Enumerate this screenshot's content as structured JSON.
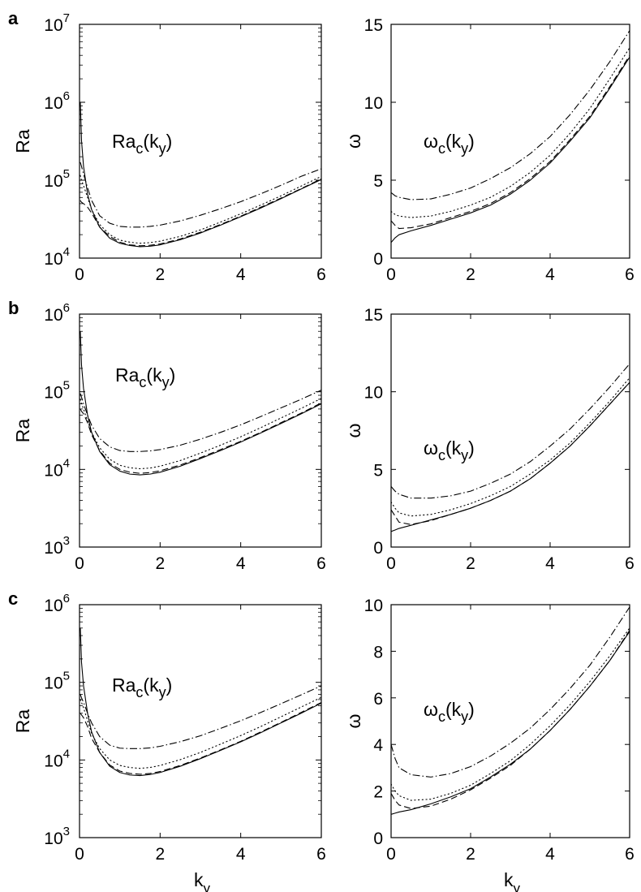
{
  "chart_data": [
    {
      "id": "a-ra",
      "panel_label": "a",
      "type": "line",
      "yscale": "log",
      "xlim": [
        0,
        6
      ],
      "ylim": [
        10000,
        10000000
      ],
      "ylabel": "Ra",
      "xlabel": "",
      "annotation": {
        "main": "Ra",
        "sub1": "c",
        "paren_open": "(",
        "var": "k",
        "sub2": "y",
        "paren_close": ")"
      },
      "xticks": [
        "0",
        "2",
        "4",
        "6"
      ],
      "yticks": [
        {
          "base": "10",
          "exp": "4"
        },
        {
          "base": "10",
          "exp": "5"
        },
        {
          "base": "10",
          "exp": "6"
        },
        {
          "base": "10",
          "exp": "7"
        }
      ],
      "x": [
        0.02,
        0.05,
        0.1,
        0.2,
        0.3,
        0.5,
        0.75,
        1.0,
        1.25,
        1.5,
        1.75,
        2.0,
        2.5,
        3.0,
        3.5,
        4.0,
        4.5,
        5.0,
        5.5,
        6.0
      ],
      "series": [
        {
          "style": "solid",
          "values": [
            1000000,
            320000,
            150000,
            66000,
            42000,
            25000,
            18000,
            15500,
            14500,
            14000,
            14200,
            14800,
            17200,
            21000,
            26500,
            34000,
            44000,
            58000,
            77000,
            102000
          ]
        },
        {
          "style": "dashed",
          "values": [
            55000,
            52000,
            50000,
            45000,
            38000,
            25000,
            19000,
            16000,
            14800,
            14400,
            14600,
            15200,
            17600,
            21500,
            27000,
            34500,
            45000,
            59000,
            78000,
            104000
          ]
        },
        {
          "style": "dotted",
          "values": [
            115000,
            100000,
            85000,
            60000,
            42000,
            27000,
            20000,
            17000,
            16000,
            15500,
            15800,
            16500,
            19000,
            23000,
            29000,
            37000,
            48000,
            63000,
            84000,
            112000
          ]
        },
        {
          "style": "dashdot",
          "values": [
            170000,
            150000,
            120000,
            80000,
            55000,
            35000,
            28000,
            25500,
            25000,
            25000,
            25500,
            26500,
            30000,
            35500,
            43000,
            53000,
            67000,
            86000,
            112000,
            140000
          ]
        }
      ]
    },
    {
      "id": "a-omega",
      "panel_label": "",
      "type": "line",
      "yscale": "linear",
      "xlim": [
        0,
        6
      ],
      "ylim": [
        0,
        15
      ],
      "ylabel": "ω",
      "xlabel": "",
      "annotation": {
        "main": "ω",
        "sub1": "c",
        "paren_open": "(",
        "var": "k",
        "sub2": "y",
        "paren_close": ")"
      },
      "xticks": [
        "0",
        "2",
        "4",
        "6"
      ],
      "yticks": [
        "0",
        "5",
        "10",
        "15"
      ],
      "x": [
        0,
        0.1,
        0.2,
        0.5,
        1,
        1.5,
        2,
        2.5,
        3,
        3.5,
        4,
        4.5,
        5,
        5.5,
        6
      ],
      "series": [
        {
          "style": "solid",
          "values": [
            1.0,
            1.3,
            1.5,
            1.75,
            2.1,
            2.5,
            2.9,
            3.4,
            4.1,
            5.0,
            6.1,
            7.5,
            9.0,
            10.9,
            12.9
          ]
        },
        {
          "style": "dashed",
          "values": [
            2.4,
            2.1,
            1.9,
            1.95,
            2.2,
            2.6,
            3.0,
            3.5,
            4.2,
            5.1,
            6.2,
            7.6,
            9.1,
            11.0,
            13.0
          ]
        },
        {
          "style": "dotted",
          "values": [
            3.0,
            2.8,
            2.7,
            2.6,
            2.7,
            3.0,
            3.4,
            3.9,
            4.6,
            5.5,
            6.6,
            8.0,
            9.6,
            11.5,
            13.5
          ]
        },
        {
          "style": "dashdot",
          "values": [
            4.2,
            4.0,
            3.9,
            3.75,
            3.8,
            4.1,
            4.5,
            5.1,
            5.8,
            6.7,
            7.8,
            9.2,
            10.8,
            12.6,
            14.6
          ]
        }
      ]
    },
    {
      "id": "b-ra",
      "panel_label": "b",
      "type": "line",
      "yscale": "log",
      "xlim": [
        0,
        6
      ],
      "ylim": [
        1000,
        1000000
      ],
      "ylabel": "Ra",
      "xlabel": "",
      "annotation": {
        "main": "Ra",
        "sub1": "c",
        "paren_open": "(",
        "var": "k",
        "sub2": "y",
        "paren_close": ")"
      },
      "xticks": [
        "0",
        "2",
        "4",
        "6"
      ],
      "yticks": [
        {
          "base": "10",
          "exp": "3"
        },
        {
          "base": "10",
          "exp": "4"
        },
        {
          "base": "10",
          "exp": "5"
        },
        {
          "base": "10",
          "exp": "6"
        }
      ],
      "x": [
        0.02,
        0.05,
        0.1,
        0.2,
        0.3,
        0.5,
        0.75,
        1.0,
        1.25,
        1.5,
        1.75,
        2.0,
        2.5,
        3.0,
        3.5,
        4.0,
        4.5,
        5.0,
        5.5,
        6.0
      ],
      "series": [
        {
          "style": "solid",
          "values": [
            600000,
            220000,
            110000,
            50000,
            30000,
            17000,
            11500,
            9500,
            8700,
            8500,
            8700,
            9200,
            11000,
            13800,
            17500,
            22500,
            29500,
            39000,
            52000,
            70000
          ]
        },
        {
          "style": "dashed",
          "values": [
            60000,
            56000,
            52000,
            40000,
            28000,
            17500,
            12000,
            10000,
            9200,
            8900,
            9100,
            9600,
            11400,
            14200,
            18000,
            23000,
            30000,
            40000,
            53000,
            72000
          ]
        },
        {
          "style": "dotted",
          "values": [
            80000,
            70000,
            60000,
            42000,
            30000,
            19000,
            13500,
            11300,
            10500,
            10200,
            10400,
            11000,
            13000,
            16200,
            20500,
            26300,
            34500,
            46000,
            61000,
            82000
          ]
        },
        {
          "style": "dashdot",
          "values": [
            95000,
            85000,
            70000,
            50000,
            37000,
            25000,
            19500,
            17500,
            17000,
            17000,
            17300,
            18000,
            20500,
            24500,
            30000,
            37500,
            48000,
            62000,
            80000,
            105000
          ]
        }
      ]
    },
    {
      "id": "b-omega",
      "panel_label": "",
      "type": "line",
      "yscale": "linear",
      "xlim": [
        0,
        6
      ],
      "ylim": [
        0,
        15
      ],
      "ylabel": "ω",
      "xlabel": "",
      "annotation": {
        "main": "ω",
        "sub1": "c",
        "paren_open": "(",
        "var": "k",
        "sub2": "y",
        "paren_close": ")"
      },
      "xticks": [
        "0",
        "2",
        "4",
        "6"
      ],
      "yticks": [
        "0",
        "5",
        "10",
        "15"
      ],
      "x": [
        0,
        0.1,
        0.2,
        0.5,
        1,
        1.5,
        2,
        2.5,
        3,
        3.5,
        4,
        4.5,
        5,
        5.5,
        6
      ],
      "series": [
        {
          "style": "solid",
          "values": [
            1.0,
            1.1,
            1.2,
            1.4,
            1.75,
            2.1,
            2.5,
            3.0,
            3.6,
            4.4,
            5.4,
            6.5,
            7.8,
            9.2,
            10.6
          ]
        },
        {
          "style": "dashed",
          "values": [
            2.4,
            2.0,
            1.6,
            1.45,
            1.7,
            2.1,
            2.5,
            3.0,
            3.6,
            4.4,
            5.4,
            6.5,
            7.8,
            9.2,
            10.6
          ]
        },
        {
          "style": "dotted",
          "values": [
            2.9,
            2.5,
            2.2,
            2.0,
            2.1,
            2.4,
            2.8,
            3.3,
            3.9,
            4.7,
            5.6,
            6.7,
            8.0,
            9.4,
            10.9
          ]
        },
        {
          "style": "dashdot",
          "values": [
            3.9,
            3.6,
            3.4,
            3.15,
            3.15,
            3.3,
            3.6,
            4.1,
            4.7,
            5.5,
            6.5,
            7.6,
            8.9,
            10.3,
            11.8
          ]
        }
      ]
    },
    {
      "id": "c-ra",
      "panel_label": "c",
      "type": "line",
      "yscale": "log",
      "xlim": [
        0,
        6
      ],
      "ylim": [
        1000,
        1000000
      ],
      "ylabel": "Ra",
      "xlabel": "k_y",
      "xlabel_main": "k",
      "xlabel_sub": "y",
      "annotation": {
        "main": "Ra",
        "sub1": "c",
        "paren_open": "(",
        "var": "k",
        "sub2": "y",
        "paren_close": ")"
      },
      "xticks": [
        "0",
        "2",
        "4",
        "6"
      ],
      "yticks": [
        {
          "base": "10",
          "exp": "3"
        },
        {
          "base": "10",
          "exp": "4"
        },
        {
          "base": "10",
          "exp": "5"
        },
        {
          "base": "10",
          "exp": "6"
        }
      ],
      "x": [
        0.02,
        0.05,
        0.1,
        0.2,
        0.3,
        0.5,
        0.75,
        1.0,
        1.25,
        1.5,
        1.75,
        2.0,
        2.5,
        3.0,
        3.5,
        4.0,
        4.5,
        5.0,
        5.5,
        6.0
      ],
      "series": [
        {
          "style": "solid",
          "values": [
            500000,
            180000,
            90000,
            40000,
            23000,
            12500,
            8300,
            6900,
            6400,
            6300,
            6500,
            6900,
            8300,
            10400,
            13300,
            17100,
            22500,
            30000,
            40000,
            54000
          ]
        },
        {
          "style": "dashed",
          "values": [
            40000,
            38000,
            35000,
            27000,
            19000,
            12500,
            8600,
            7200,
            6700,
            6550,
            6700,
            7100,
            8500,
            10600,
            13500,
            17400,
            23000,
            30500,
            41000,
            55000
          ]
        },
        {
          "style": "dotted",
          "values": [
            60000,
            55000,
            47000,
            32000,
            22000,
            14000,
            10000,
            8500,
            8000,
            7800,
            8000,
            8500,
            10100,
            12500,
            16000,
            20600,
            27000,
            36000,
            48000,
            64000
          ]
        },
        {
          "style": "dashdot",
          "values": [
            70000,
            63000,
            55000,
            40000,
            30000,
            20000,
            15500,
            14200,
            14000,
            14000,
            14300,
            15000,
            17200,
            20500,
            25500,
            32000,
            41000,
            53000,
            69000,
            90000
          ]
        }
      ]
    },
    {
      "id": "c-omega",
      "panel_label": "",
      "type": "line",
      "yscale": "linear",
      "xlim": [
        0,
        6
      ],
      "ylim": [
        0,
        10
      ],
      "ylabel": "ω",
      "xlabel": "k_y",
      "xlabel_main": "k",
      "xlabel_sub": "y",
      "annotation": {
        "main": "ω",
        "sub1": "c",
        "paren_open": "(",
        "var": "k",
        "sub2": "y",
        "paren_close": ")"
      },
      "xticks": [
        "0",
        "2",
        "4",
        "6"
      ],
      "yticks": [
        "0",
        "2",
        "4",
        "6",
        "8",
        "10"
      ],
      "x": [
        0,
        0.1,
        0.2,
        0.5,
        1,
        1.5,
        2,
        2.5,
        3,
        3.5,
        4,
        4.5,
        5,
        5.5,
        6
      ],
      "series": [
        {
          "style": "solid",
          "values": [
            1.0,
            1.05,
            1.1,
            1.2,
            1.45,
            1.75,
            2.1,
            2.6,
            3.15,
            3.8,
            4.6,
            5.5,
            6.5,
            7.6,
            8.85
          ]
        },
        {
          "style": "dashed",
          "values": [
            1.9,
            1.6,
            1.4,
            1.25,
            1.35,
            1.65,
            2.05,
            2.55,
            3.1,
            3.8,
            4.6,
            5.5,
            6.5,
            7.6,
            8.9
          ]
        },
        {
          "style": "dotted",
          "values": [
            2.3,
            2.0,
            1.8,
            1.6,
            1.65,
            1.9,
            2.25,
            2.75,
            3.3,
            4.0,
            4.8,
            5.7,
            6.7,
            7.8,
            9.0
          ]
        },
        {
          "style": "dashdot",
          "values": [
            4.0,
            3.4,
            3.0,
            2.7,
            2.6,
            2.75,
            3.05,
            3.5,
            4.05,
            4.7,
            5.5,
            6.4,
            7.4,
            8.6,
            9.9
          ]
        }
      ]
    }
  ]
}
